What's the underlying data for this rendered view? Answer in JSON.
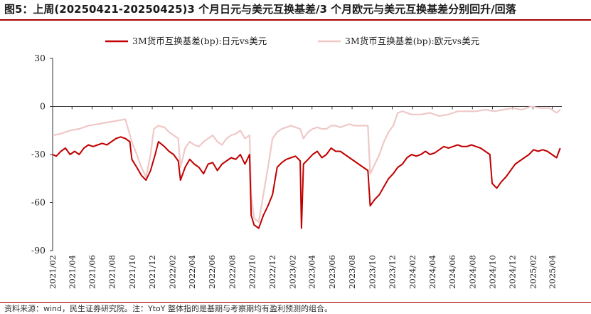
{
  "title": "图5：上周(20250421-20250425)3 个月日元与美元互换基差/3 个月欧元与美元互换基差分别回升/回落",
  "source": "资料来源：wind，民生证券研究院。注：YtoY 整体指的是基期与考察期均有盈利预测的组合。",
  "colors": {
    "accent": "#a80000",
    "jpy": "#c00000",
    "eur": "#efc8c8",
    "axis": "#333333"
  },
  "chart_data": {
    "type": "line",
    "title": "",
    "xlabel": "",
    "ylabel": "",
    "ylim": [
      -90,
      30
    ],
    "yticks": [
      30,
      0,
      -30,
      -60,
      -90
    ],
    "grid": false,
    "legend_position": "top",
    "x_tick_labels": [
      "2021/02",
      "2021/04",
      "2021/06",
      "2021/08",
      "2021/10",
      "2021/12",
      "2022/02",
      "2022/04",
      "2022/06",
      "2022/08",
      "2022/10",
      "2022/12",
      "2023/02",
      "2023/04",
      "2023/06",
      "2023/08",
      "2023/10",
      "2023/12",
      "2024/02",
      "2024/04",
      "2024/06",
      "2024/08",
      "2024/10",
      "2024/12",
      "2025/02",
      "2025/04"
    ],
    "x_start": "2021-02-01",
    "series": [
      {
        "name": "3M货币互换基差(bp):日元vs美元",
        "color": "#c00000",
        "points": [
          [
            "2021-02-01",
            -30
          ],
          [
            "2021-02-12",
            -31
          ],
          [
            "2021-02-26",
            -28
          ],
          [
            "2021-03-12",
            -26
          ],
          [
            "2021-03-26",
            -30
          ],
          [
            "2021-04-09",
            -28
          ],
          [
            "2021-04-23",
            -30
          ],
          [
            "2021-05-07",
            -26
          ],
          [
            "2021-05-21",
            -24
          ],
          [
            "2021-06-04",
            -25
          ],
          [
            "2021-06-18",
            -24
          ],
          [
            "2021-07-02",
            -23
          ],
          [
            "2021-07-16",
            -24
          ],
          [
            "2021-07-30",
            -22
          ],
          [
            "2021-08-13",
            -20
          ],
          [
            "2021-08-27",
            -19
          ],
          [
            "2021-09-10",
            -20
          ],
          [
            "2021-09-24",
            -22
          ],
          [
            "2021-09-30",
            -33
          ],
          [
            "2021-10-15",
            -38
          ],
          [
            "2021-10-29",
            -43
          ],
          [
            "2021-11-12",
            -46
          ],
          [
            "2021-11-26",
            -40
          ],
          [
            "2021-12-10",
            -30
          ],
          [
            "2021-12-20",
            -22
          ],
          [
            "2022-01-07",
            -25
          ],
          [
            "2022-01-21",
            -28
          ],
          [
            "2022-02-04",
            -30
          ],
          [
            "2022-02-18",
            -34
          ],
          [
            "2022-02-25",
            -46
          ],
          [
            "2022-03-11",
            -38
          ],
          [
            "2022-03-25",
            -33
          ],
          [
            "2022-04-08",
            -36
          ],
          [
            "2022-04-22",
            -38
          ],
          [
            "2022-05-06",
            -42
          ],
          [
            "2022-05-20",
            -36
          ],
          [
            "2022-06-03",
            -35
          ],
          [
            "2022-06-17",
            -40
          ],
          [
            "2022-07-01",
            -36
          ],
          [
            "2022-07-15",
            -34
          ],
          [
            "2022-07-29",
            -32
          ],
          [
            "2022-08-12",
            -33
          ],
          [
            "2022-08-26",
            -30
          ],
          [
            "2022-09-09",
            -36
          ],
          [
            "2022-09-23",
            -30
          ],
          [
            "2022-09-28",
            -68
          ],
          [
            "2022-10-07",
            -74
          ],
          [
            "2022-10-21",
            -76
          ],
          [
            "2022-11-04",
            -68
          ],
          [
            "2022-11-18",
            -62
          ],
          [
            "2022-12-02",
            -55
          ],
          [
            "2022-12-16",
            -38
          ],
          [
            "2022-12-30",
            -35
          ],
          [
            "2023-01-13",
            -33
          ],
          [
            "2023-01-27",
            -32
          ],
          [
            "2023-02-10",
            -31
          ],
          [
            "2023-02-24",
            -34
          ],
          [
            "2023-02-28",
            -76
          ],
          [
            "2023-03-06",
            -36
          ],
          [
            "2023-03-20",
            -33
          ],
          [
            "2023-04-03",
            -30
          ],
          [
            "2023-04-17",
            -28
          ],
          [
            "2023-05-01",
            -32
          ],
          [
            "2023-05-15",
            -30
          ],
          [
            "2023-05-29",
            -26
          ],
          [
            "2023-06-12",
            -28
          ],
          [
            "2023-06-26",
            -28
          ],
          [
            "2023-07-10",
            -30
          ],
          [
            "2023-07-24",
            -32
          ],
          [
            "2023-08-07",
            -34
          ],
          [
            "2023-08-21",
            -36
          ],
          [
            "2023-09-04",
            -38
          ],
          [
            "2023-09-18",
            -40
          ],
          [
            "2023-09-25",
            -62
          ],
          [
            "2023-10-09",
            -58
          ],
          [
            "2023-10-23",
            -55
          ],
          [
            "2023-11-06",
            -50
          ],
          [
            "2023-11-20",
            -45
          ],
          [
            "2023-12-04",
            -42
          ],
          [
            "2023-12-18",
            -38
          ],
          [
            "2024-01-01",
            -36
          ],
          [
            "2024-01-15",
            -32
          ],
          [
            "2024-01-29",
            -30
          ],
          [
            "2024-02-12",
            -31
          ],
          [
            "2024-02-26",
            -30
          ],
          [
            "2024-03-11",
            -28
          ],
          [
            "2024-03-25",
            -30
          ],
          [
            "2024-04-08",
            -29
          ],
          [
            "2024-04-22",
            -27
          ],
          [
            "2024-05-06",
            -25
          ],
          [
            "2024-05-20",
            -26
          ],
          [
            "2024-06-03",
            -25
          ],
          [
            "2024-06-17",
            -24
          ],
          [
            "2024-07-01",
            -25
          ],
          [
            "2024-07-15",
            -25
          ],
          [
            "2024-07-29",
            -24
          ],
          [
            "2024-08-12",
            -25
          ],
          [
            "2024-08-26",
            -26
          ],
          [
            "2024-09-09",
            -28
          ],
          [
            "2024-09-23",
            -30
          ],
          [
            "2024-09-30",
            -48
          ],
          [
            "2024-10-14",
            -51
          ],
          [
            "2024-10-28",
            -47
          ],
          [
            "2024-11-11",
            -44
          ],
          [
            "2024-11-25",
            -40
          ],
          [
            "2024-12-09",
            -36
          ],
          [
            "2024-12-23",
            -34
          ],
          [
            "2025-01-06",
            -32
          ],
          [
            "2025-01-20",
            -30
          ],
          [
            "2025-02-03",
            -27
          ],
          [
            "2025-02-17",
            -28
          ],
          [
            "2025-03-03",
            -27
          ],
          [
            "2025-03-17",
            -28
          ],
          [
            "2025-03-31",
            -30
          ],
          [
            "2025-04-14",
            -32
          ],
          [
            "2025-04-25",
            -26
          ]
        ]
      },
      {
        "name": "3M货币互换基差(bp):欧元vs美元",
        "color": "#efc8c8",
        "points": [
          [
            "2021-02-01",
            -18
          ],
          [
            "2021-02-26",
            -17
          ],
          [
            "2021-03-26",
            -15
          ],
          [
            "2021-04-23",
            -14
          ],
          [
            "2021-05-21",
            -12
          ],
          [
            "2021-06-18",
            -11
          ],
          [
            "2021-07-16",
            -10
          ],
          [
            "2021-08-13",
            -9
          ],
          [
            "2021-09-10",
            -8
          ],
          [
            "2021-09-30",
            -22
          ],
          [
            "2021-10-15",
            -30
          ],
          [
            "2021-10-29",
            -38
          ],
          [
            "2021-11-12",
            -44
          ],
          [
            "2021-11-26",
            -30
          ],
          [
            "2021-12-06",
            -14
          ],
          [
            "2021-12-20",
            -12
          ],
          [
            "2022-01-07",
            -13
          ],
          [
            "2022-01-21",
            -16
          ],
          [
            "2022-02-04",
            -18
          ],
          [
            "2022-02-18",
            -20
          ],
          [
            "2022-02-25",
            -38
          ],
          [
            "2022-03-11",
            -26
          ],
          [
            "2022-03-25",
            -22
          ],
          [
            "2022-04-08",
            -24
          ],
          [
            "2022-04-22",
            -25
          ],
          [
            "2022-05-06",
            -22
          ],
          [
            "2022-05-20",
            -20
          ],
          [
            "2022-06-03",
            -18
          ],
          [
            "2022-06-17",
            -22
          ],
          [
            "2022-07-01",
            -24
          ],
          [
            "2022-07-15",
            -20
          ],
          [
            "2022-07-29",
            -18
          ],
          [
            "2022-08-12",
            -17
          ],
          [
            "2022-08-26",
            -15
          ],
          [
            "2022-09-09",
            -20
          ],
          [
            "2022-09-23",
            -18
          ],
          [
            "2022-09-28",
            -55
          ],
          [
            "2022-10-07",
            -70
          ],
          [
            "2022-10-21",
            -72
          ],
          [
            "2022-11-04",
            -55
          ],
          [
            "2022-11-18",
            -38
          ],
          [
            "2022-12-02",
            -20
          ],
          [
            "2022-12-16",
            -16
          ],
          [
            "2022-12-30",
            -14
          ],
          [
            "2023-01-13",
            -13
          ],
          [
            "2023-01-27",
            -12
          ],
          [
            "2023-02-10",
            -13
          ],
          [
            "2023-02-24",
            -14
          ],
          [
            "2023-03-06",
            -20
          ],
          [
            "2023-03-20",
            -16
          ],
          [
            "2023-04-03",
            -14
          ],
          [
            "2023-04-17",
            -13
          ],
          [
            "2023-05-01",
            -14
          ],
          [
            "2023-05-15",
            -14
          ],
          [
            "2023-05-29",
            -12
          ],
          [
            "2023-06-12",
            -12
          ],
          [
            "2023-06-26",
            -13
          ],
          [
            "2023-07-10",
            -12
          ],
          [
            "2023-07-24",
            -11
          ],
          [
            "2023-08-07",
            -12
          ],
          [
            "2023-08-21",
            -12
          ],
          [
            "2023-09-04",
            -12
          ],
          [
            "2023-09-18",
            -12
          ],
          [
            "2023-09-25",
            -42
          ],
          [
            "2023-10-09",
            -36
          ],
          [
            "2023-10-23",
            -30
          ],
          [
            "2023-11-06",
            -22
          ],
          [
            "2023-11-20",
            -16
          ],
          [
            "2023-12-04",
            -12
          ],
          [
            "2023-12-18",
            -4
          ],
          [
            "2024-01-01",
            -3
          ],
          [
            "2024-01-29",
            -5
          ],
          [
            "2024-02-26",
            -5
          ],
          [
            "2024-03-25",
            -4
          ],
          [
            "2024-04-22",
            -6
          ],
          [
            "2024-05-20",
            -5
          ],
          [
            "2024-06-17",
            -3
          ],
          [
            "2024-07-15",
            -3
          ],
          [
            "2024-08-12",
            -3
          ],
          [
            "2024-09-09",
            -2
          ],
          [
            "2024-10-07",
            -3
          ],
          [
            "2024-11-04",
            -2
          ],
          [
            "2024-12-02",
            -1
          ],
          [
            "2024-12-30",
            -2
          ],
          [
            "2025-01-27",
            0
          ],
          [
            "2025-02-24",
            -1
          ],
          [
            "2025-03-24",
            -1
          ],
          [
            "2025-04-14",
            -4
          ],
          [
            "2025-04-25",
            -2
          ]
        ]
      }
    ]
  }
}
